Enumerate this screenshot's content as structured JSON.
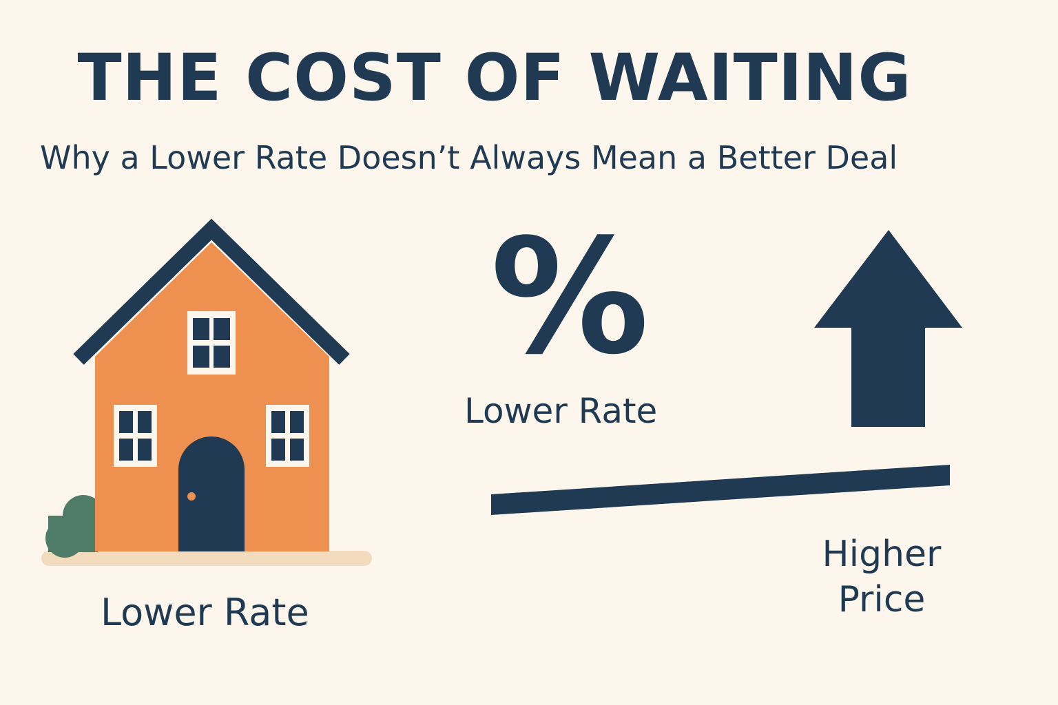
{
  "title": "THE COST OF WAITING",
  "subtitle": "Why a Lower Rate Doesn’t Always Mean a Better Deal",
  "house_label": "Lower Rate",
  "percent_symbol": "%",
  "rate_label": "Lower Rate",
  "price_label": "Higher Price",
  "colors": {
    "background": "#fdf6ec",
    "navy": "#1f3a52",
    "house": "#ee9150",
    "window_frame": "#fdf6ec",
    "bush": "#4e7c68",
    "ground": "#f2dcbd",
    "doorknob": "#ee9150"
  }
}
